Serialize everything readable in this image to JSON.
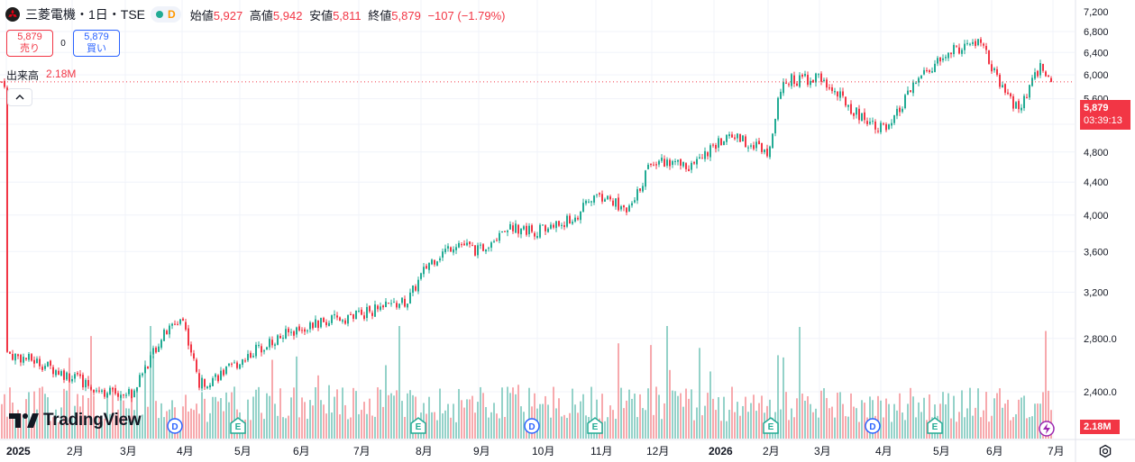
{
  "header": {
    "symbol": "三菱電機・1日・TSE",
    "badge": "D",
    "open_label": "始値",
    "open": "5,927",
    "high_label": "高値",
    "high": "5,942",
    "low_label": "安値",
    "low": "5,811",
    "close_label": "終値",
    "close": "5,879",
    "change": "−107 (−1.79%)"
  },
  "trade": {
    "sell_price": "5,879",
    "sell_label": "売り",
    "spread": "0",
    "buy_price": "5,879",
    "buy_label": "買い"
  },
  "volume": {
    "label": "出来高",
    "value": "2.18M"
  },
  "price_tag": {
    "price": "5,879",
    "countdown": "03:39:13"
  },
  "volume_tag": "2.18M",
  "brand": "TradingView",
  "colors": {
    "up": "#22ab94",
    "down": "#f23645",
    "up_vol": "#94d2c9",
    "down_vol": "#f7a9ad",
    "accent": "#2962ff"
  },
  "chart_data": {
    "type": "candlestick",
    "price_axis": {
      "ticks": [
        6800,
        6400,
        6000,
        5600,
        5200,
        4800,
        4400,
        4000,
        3600,
        3200,
        2800,
        2400
      ],
      "tick_labels": [
        "6,800",
        "6,400",
        "6,000",
        "5,600",
        "5,200",
        "4,800",
        "4,400",
        "4,000",
        "3,600",
        "3,200",
        "2,800.0",
        "2,400.0"
      ],
      "top_partial_label": "7,200",
      "scale": "log"
    },
    "time_axis": {
      "labels": [
        "2025",
        "2月",
        "3月",
        "4月",
        "5月",
        "6月",
        "7月",
        "8月",
        "9月",
        "10月",
        "11月",
        "12月",
        "2026",
        "2月",
        "3月",
        "4月",
        "5月",
        "6月",
        "7月"
      ],
      "bold": [
        "2025",
        "2026"
      ]
    },
    "last_price": 5879,
    "events": [
      {
        "type": "dividend",
        "label": "D",
        "month": "4月"
      },
      {
        "type": "earnings",
        "label": "E",
        "month": "5月"
      },
      {
        "type": "earnings",
        "label": "E",
        "month": "8月"
      },
      {
        "type": "dividend",
        "label": "D",
        "month": "10月"
      },
      {
        "type": "earnings",
        "label": "E",
        "month": "11月"
      },
      {
        "type": "earnings",
        "label": "E",
        "month": "2月"
      },
      {
        "type": "dividend",
        "label": "D",
        "month": "4月"
      },
      {
        "type": "earnings",
        "label": "E",
        "month": "5月"
      }
    ],
    "close_path": [
      {
        "date": "2025-01-01",
        "close": 2680
      },
      {
        "date": "2025-01-15",
        "close": 2620
      },
      {
        "date": "2025-02-01",
        "close": 2500
      },
      {
        "date": "2025-02-20",
        "close": 2400
      },
      {
        "date": "2025-03-05",
        "close": 2390
      },
      {
        "date": "2025-03-20",
        "close": 2800
      },
      {
        "date": "2025-04-01",
        "close": 2980
      },
      {
        "date": "2025-04-10",
        "close": 2450
      },
      {
        "date": "2025-04-25",
        "close": 2550
      },
      {
        "date": "2025-05-10",
        "close": 2720
      },
      {
        "date": "2025-06-01",
        "close": 2880
      },
      {
        "date": "2025-07-01",
        "close": 3000
      },
      {
        "date": "2025-07-25",
        "close": 3120
      },
      {
        "date": "2025-08-05",
        "close": 3480
      },
      {
        "date": "2025-08-20",
        "close": 3700
      },
      {
        "date": "2025-09-01",
        "close": 3600
      },
      {
        "date": "2025-09-15",
        "close": 3870
      },
      {
        "date": "2025-10-01",
        "close": 3820
      },
      {
        "date": "2025-10-20",
        "close": 3950
      },
      {
        "date": "2025-11-01",
        "close": 4250
      },
      {
        "date": "2025-11-20",
        "close": 4050
      },
      {
        "date": "2025-12-01",
        "close": 4700
      },
      {
        "date": "2025-12-20",
        "close": 4600
      },
      {
        "date": "2026-01-10",
        "close": 5050
      },
      {
        "date": "2026-02-01",
        "close": 4820
      },
      {
        "date": "2026-02-10",
        "close": 5900
      },
      {
        "date": "2026-03-01",
        "close": 5950
      },
      {
        "date": "2026-03-20",
        "close": 5350
      },
      {
        "date": "2026-04-05",
        "close": 5100
      },
      {
        "date": "2026-04-20",
        "close": 5900
      },
      {
        "date": "2026-05-10",
        "close": 6450
      },
      {
        "date": "2026-05-25",
        "close": 6600
      },
      {
        "date": "2026-06-05",
        "close": 5800
      },
      {
        "date": "2026-06-15",
        "close": 5400
      },
      {
        "date": "2026-06-25",
        "close": 6150
      },
      {
        "date": "2026-07-01",
        "close": 5879
      }
    ]
  }
}
